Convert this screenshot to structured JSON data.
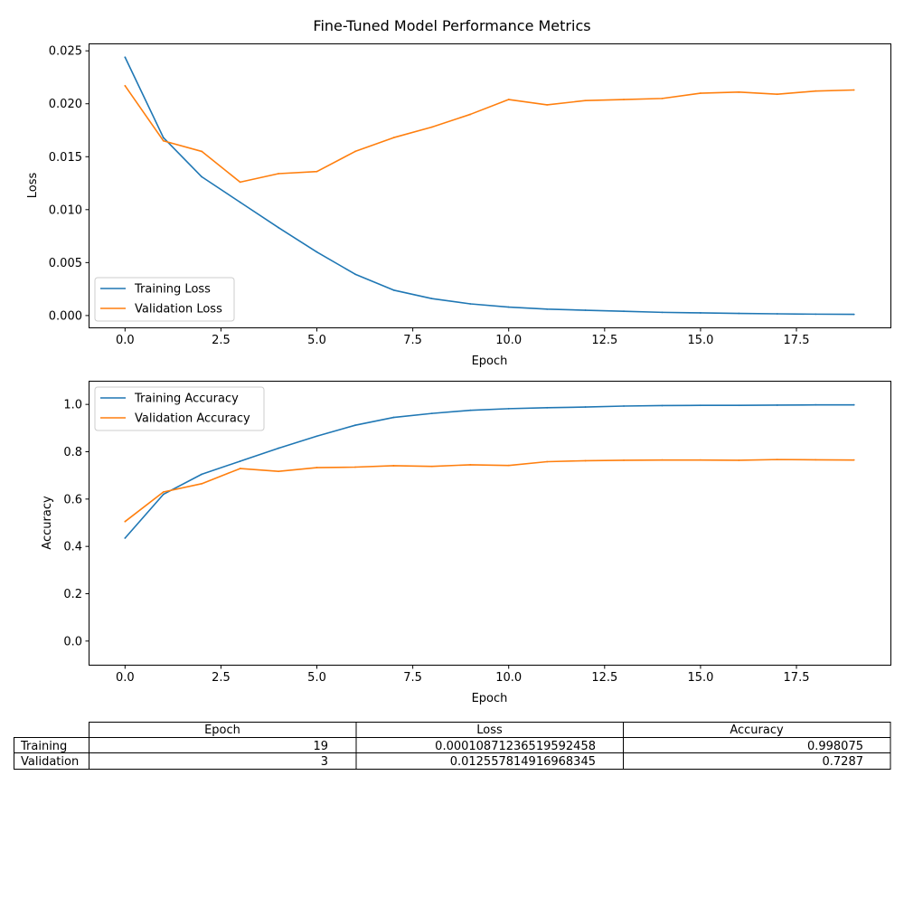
{
  "figure": {
    "title": "Fine-Tuned Model Performance Metrics"
  },
  "colors": {
    "training": "#1f77b4",
    "validation": "#ff7f0e",
    "axis": "#000000"
  },
  "chart_data": [
    {
      "type": "line",
      "title": "",
      "xlabel": "Epoch",
      "ylabel": "Loss",
      "xlim": [
        -0.95,
        19.95
      ],
      "ylim": [
        -0.00112,
        0.0257
      ],
      "xticks": [
        0.0,
        2.5,
        5.0,
        7.5,
        10.0,
        12.5,
        15.0,
        17.5
      ],
      "xtick_labels": [
        "0.0",
        "2.5",
        "5.0",
        "7.5",
        "10.0",
        "12.5",
        "15.0",
        "17.5"
      ],
      "yticks": [
        0.0,
        0.005,
        0.01,
        0.015,
        0.02,
        0.025
      ],
      "ytick_labels": [
        "0.000",
        "0.005",
        "0.010",
        "0.015",
        "0.020",
        "0.025"
      ],
      "legend_position": "lower-left",
      "x": [
        0,
        1,
        2,
        3,
        4,
        5,
        6,
        7,
        8,
        9,
        10,
        11,
        12,
        13,
        14,
        15,
        16,
        17,
        18,
        19
      ],
      "series": [
        {
          "name": "Training Loss",
          "color_key": "training",
          "values": [
            0.0244,
            0.0168,
            0.0131,
            0.0107,
            0.0083,
            0.006,
            0.0039,
            0.0024,
            0.0016,
            0.0011,
            0.0008,
            0.0006,
            0.0005,
            0.0004,
            0.0003,
            0.00025,
            0.0002,
            0.00016,
            0.00013,
            0.000109
          ]
        },
        {
          "name": "Validation Loss",
          "color_key": "validation",
          "values": [
            0.0217,
            0.0165,
            0.0155,
            0.0126,
            0.0134,
            0.0136,
            0.0155,
            0.0168,
            0.0178,
            0.019,
            0.0204,
            0.0199,
            0.0203,
            0.0204,
            0.0205,
            0.021,
            0.0211,
            0.0209,
            0.0212,
            0.0213
          ]
        }
      ]
    },
    {
      "type": "line",
      "title": "",
      "xlabel": "Epoch",
      "ylabel": "Accuracy",
      "xlim": [
        -0.95,
        19.95
      ],
      "ylim": [
        -0.1,
        1.1
      ],
      "xticks": [
        0.0,
        2.5,
        5.0,
        7.5,
        10.0,
        12.5,
        15.0,
        17.5
      ],
      "xtick_labels": [
        "0.0",
        "2.5",
        "5.0",
        "7.5",
        "10.0",
        "12.5",
        "15.0",
        "17.5"
      ],
      "yticks": [
        0.0,
        0.2,
        0.4,
        0.6,
        0.8,
        1.0
      ],
      "ytick_labels": [
        "0.0",
        "0.2",
        "0.4",
        "0.6",
        "0.8",
        "1.0"
      ],
      "legend_position": "top-left",
      "x": [
        0,
        1,
        2,
        3,
        4,
        5,
        6,
        7,
        8,
        9,
        10,
        11,
        12,
        13,
        14,
        15,
        16,
        17,
        18,
        19
      ],
      "series": [
        {
          "name": "Training Accuracy",
          "color_key": "training",
          "values": [
            0.435,
            0.62,
            0.705,
            0.76,
            0.815,
            0.866,
            0.912,
            0.945,
            0.962,
            0.975,
            0.982,
            0.986,
            0.989,
            0.993,
            0.995,
            0.996,
            0.996,
            0.997,
            0.998,
            0.998
          ]
        },
        {
          "name": "Validation Accuracy",
          "color_key": "validation",
          "values": [
            0.505,
            0.63,
            0.665,
            0.729,
            0.717,
            0.733,
            0.735,
            0.741,
            0.738,
            0.745,
            0.742,
            0.758,
            0.762,
            0.764,
            0.765,
            0.765,
            0.764,
            0.767,
            0.766,
            0.765
          ]
        }
      ]
    }
  ],
  "table": {
    "columns": [
      "Epoch",
      "Loss",
      "Accuracy"
    ],
    "rows": [
      {
        "label": "Training",
        "cells": [
          "19",
          "0.00010871236519592458",
          "0.998075"
        ]
      },
      {
        "label": "Validation",
        "cells": [
          "3",
          "0.012557814916968345",
          "0.7287"
        ]
      }
    ]
  }
}
